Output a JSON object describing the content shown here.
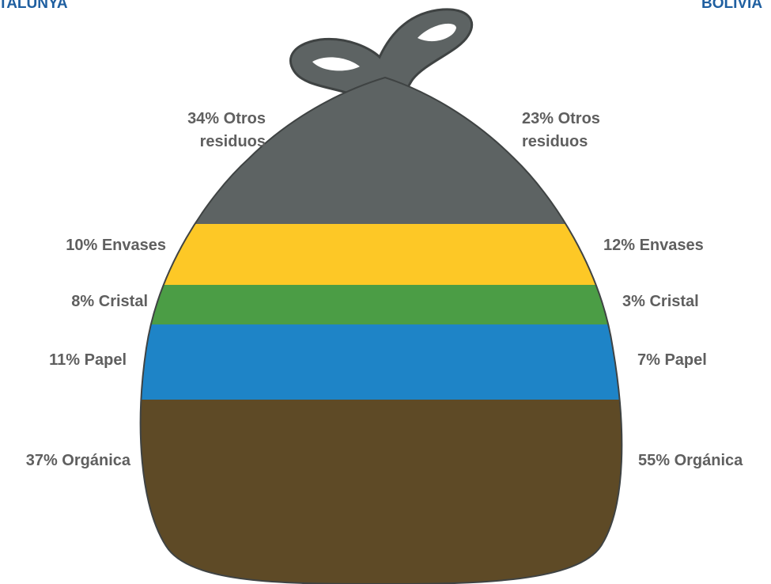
{
  "header": {
    "left_title": "TALUNYA",
    "right_title": "BOLIVIA"
  },
  "chart_data": {
    "type": "bar",
    "categories": [
      "Otros residuos",
      "Envases",
      "Cristal",
      "Papel",
      "Orgánica"
    ],
    "series": [
      {
        "name": "TALUNYA",
        "values": [
          34,
          10,
          8,
          11,
          37
        ]
      },
      {
        "name": "BOLIVIA",
        "values": [
          23,
          12,
          3,
          7,
          55
        ]
      }
    ],
    "units": "%",
    "colors": {
      "Otros residuos": "#5d6363",
      "Envases": "#fdc826",
      "Cristal": "#4b9d45",
      "Papel": "#1e84c7",
      "Orgánica": "#5e4a26"
    },
    "title": "",
    "xlabel": "",
    "ylabel": ""
  },
  "labels": {
    "left": [
      {
        "pct": "34%",
        "name": "Otros",
        "name2": "residuos"
      },
      {
        "pct": "10%",
        "name": "Envases"
      },
      {
        "pct": "8%",
        "name": "Cristal"
      },
      {
        "pct": "11%",
        "name": "Papel"
      },
      {
        "pct": "37%",
        "name": "Orgánica"
      }
    ],
    "right": [
      {
        "pct": "23%",
        "name": "Otros",
        "name2": "residuos"
      },
      {
        "pct": "12%",
        "name": "Envases"
      },
      {
        "pct": "3%",
        "name": "Cristal"
      },
      {
        "pct": "7%",
        "name": "Papel"
      },
      {
        "pct": "55%",
        "name": "Orgánica"
      }
    ]
  }
}
